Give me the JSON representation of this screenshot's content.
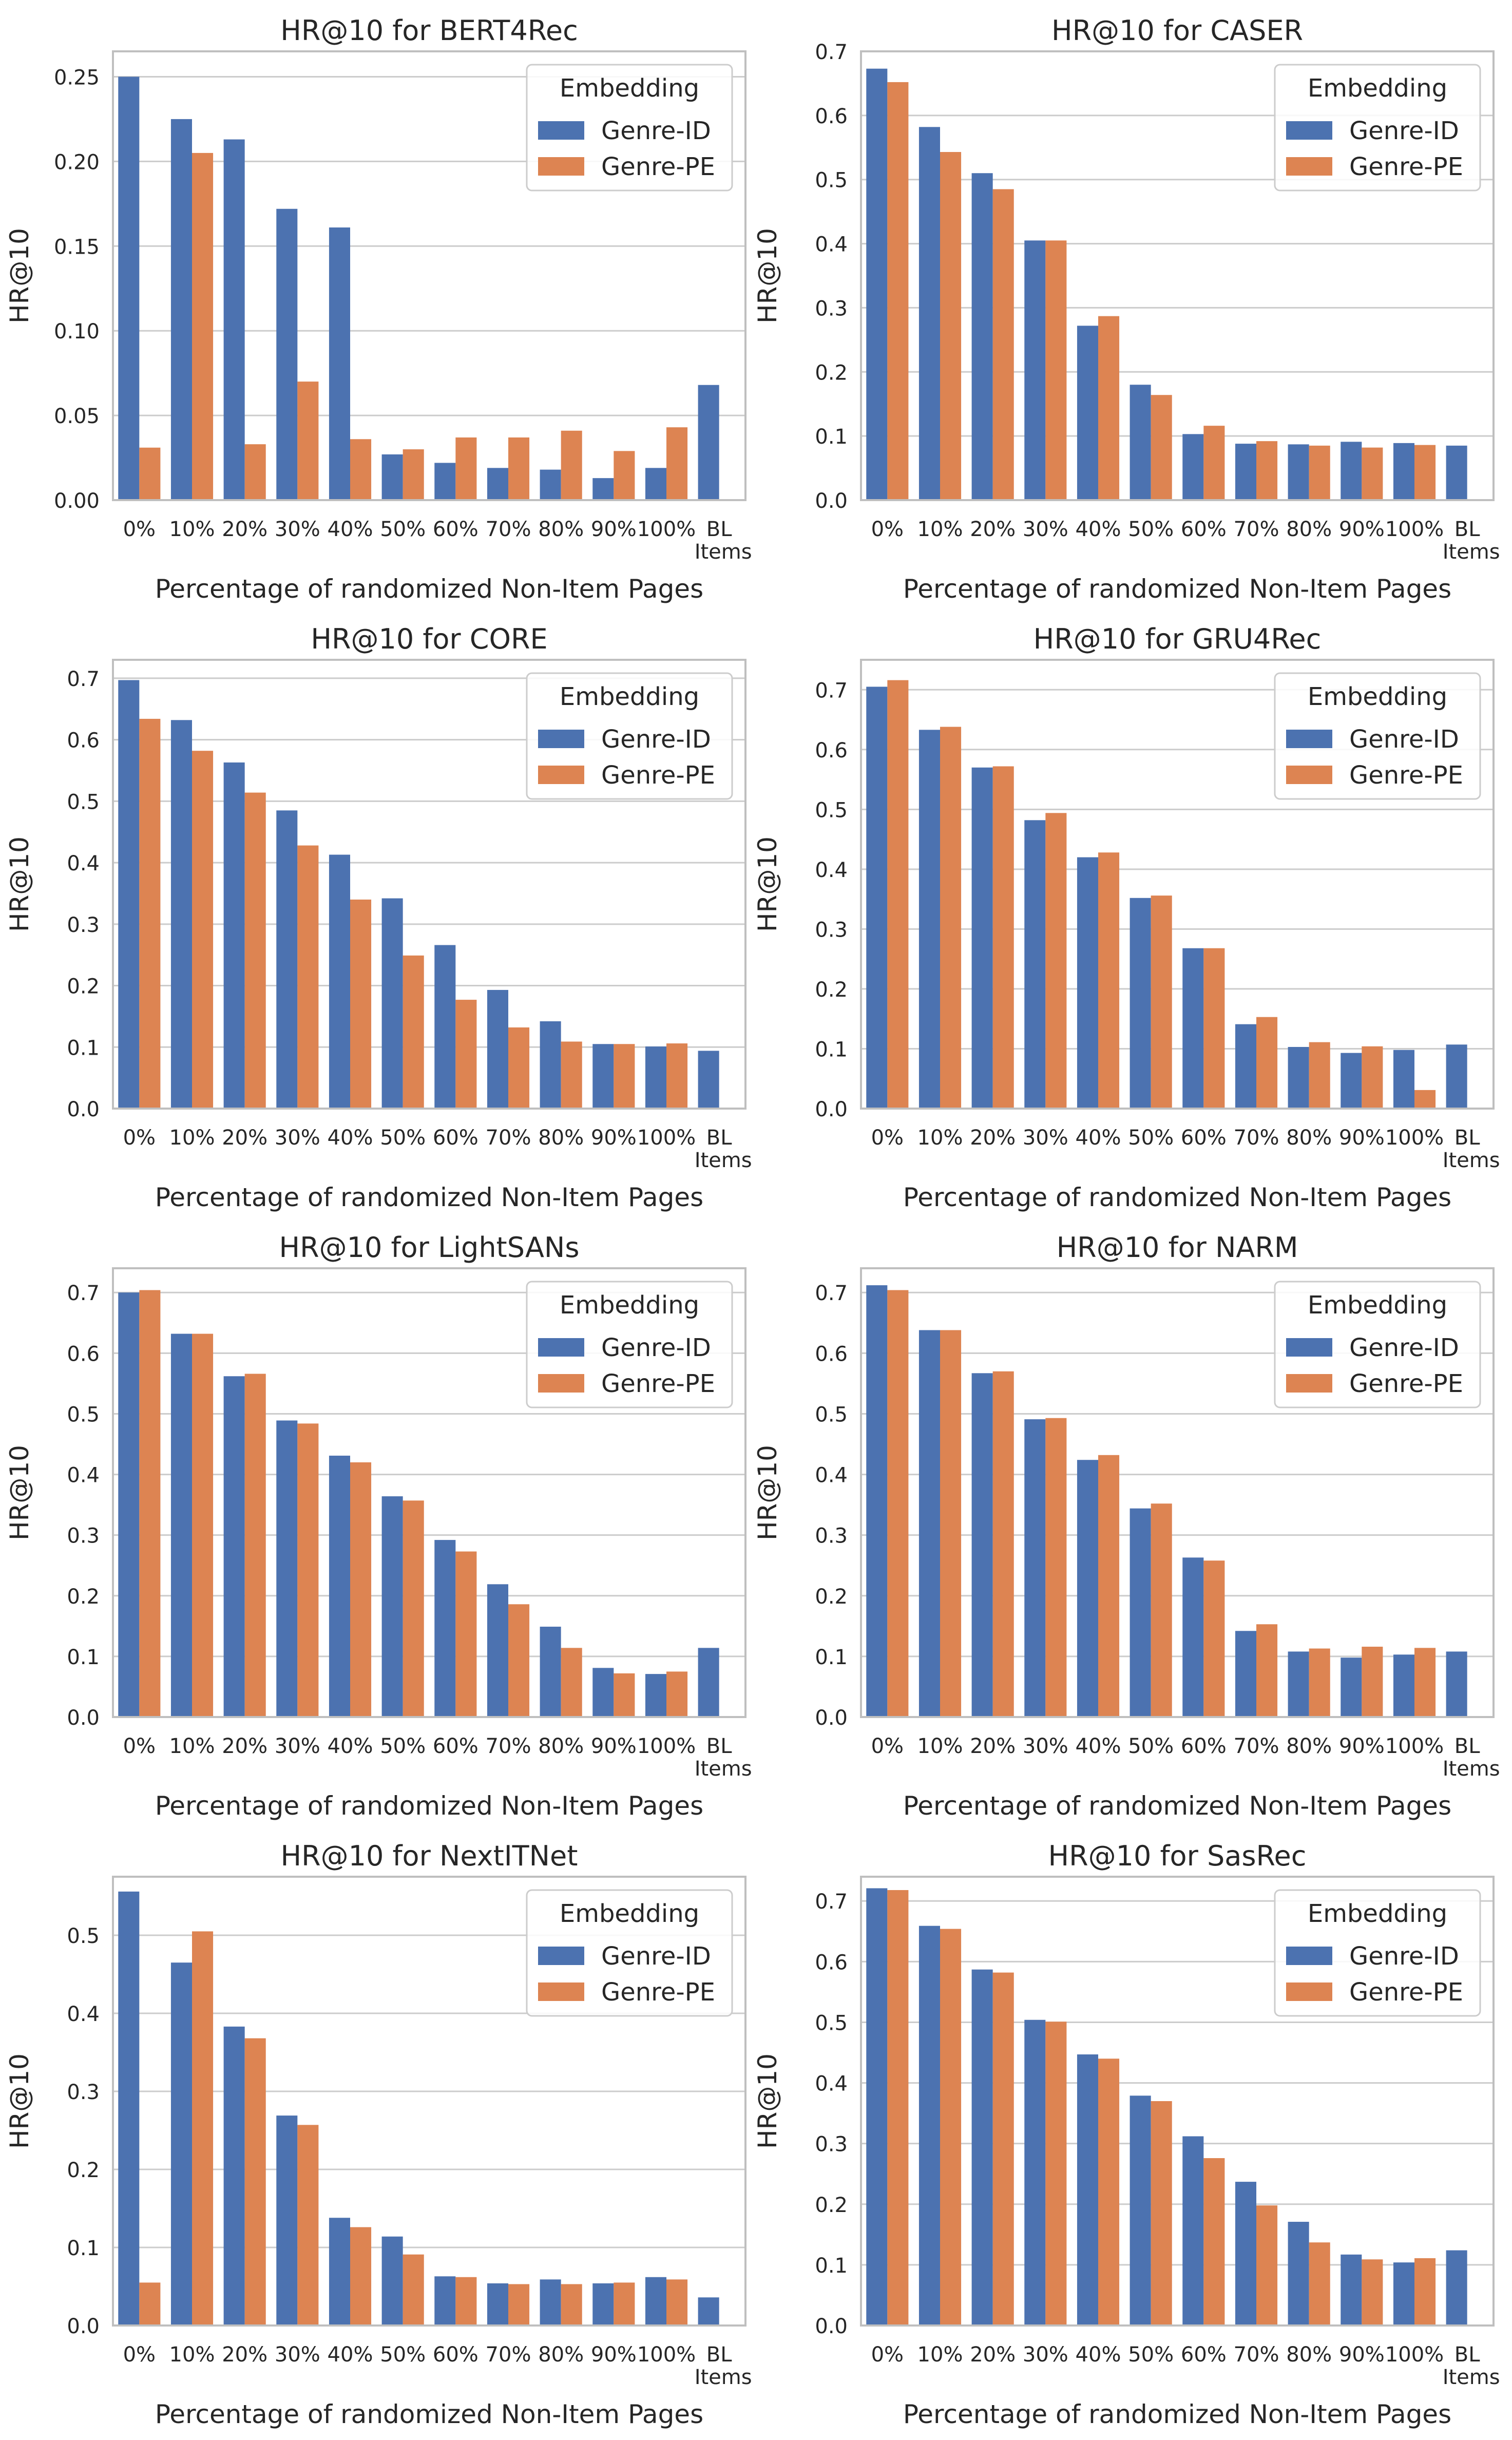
{
  "figure": {
    "legend_position": "top-right",
    "colors": {
      "genre_id": "#4c72b0",
      "genre_pe": "#dd8452",
      "grid": "#cccccc",
      "axes": "#bfbfbf",
      "text": "#262626"
    }
  },
  "chart_data": [
    {
      "type": "bar",
      "title": "HR@10 for BERT4Rec",
      "xlabel": "Percentage of randomized Non-Item Pages",
      "ylabel": "HR@10",
      "ylim": [
        0,
        0.265
      ],
      "yticks": [
        "0.00",
        "0.05",
        "0.10",
        "0.15",
        "0.20",
        "0.25"
      ],
      "categories": [
        "0%",
        "10%",
        "20%",
        "30%",
        "40%",
        "50%",
        "60%",
        "70%",
        "80%",
        "90%",
        "100%",
        "BL Items"
      ],
      "legend_title": "Embedding",
      "series": [
        {
          "name": "Genre-ID",
          "values": [
            0.25,
            0.225,
            0.213,
            0.172,
            0.161,
            0.027,
            0.022,
            0.019,
            0.018,
            0.013,
            0.019,
            0.068
          ]
        },
        {
          "name": "Genre-PE",
          "values": [
            0.031,
            0.205,
            0.033,
            0.07,
            0.036,
            0.03,
            0.037,
            0.037,
            0.041,
            0.029,
            0.043,
            null
          ]
        }
      ]
    },
    {
      "type": "bar",
      "title": "HR@10 for CASER",
      "xlabel": "Percentage of randomized Non-Item Pages",
      "ylabel": "HR@10",
      "ylim": [
        0,
        0.7
      ],
      "yticks": [
        "0.0",
        "0.1",
        "0.2",
        "0.3",
        "0.4",
        "0.5",
        "0.6",
        "0.7"
      ],
      "categories": [
        "0%",
        "10%",
        "20%",
        "30%",
        "40%",
        "50%",
        "60%",
        "70%",
        "80%",
        "90%",
        "100%",
        "BL Items"
      ],
      "legend_title": "Embedding",
      "series": [
        {
          "name": "Genre-ID",
          "values": [
            0.673,
            0.582,
            0.51,
            0.405,
            0.272,
            0.18,
            0.103,
            0.088,
            0.087,
            0.091,
            0.089,
            0.085
          ]
        },
        {
          "name": "Genre-PE",
          "values": [
            0.652,
            0.543,
            0.485,
            0.405,
            0.287,
            0.164,
            0.116,
            0.092,
            0.085,
            0.082,
            0.086,
            null
          ]
        }
      ]
    },
    {
      "type": "bar",
      "title": "HR@10 for CORE",
      "xlabel": "Percentage of randomized Non-Item Pages",
      "ylabel": "HR@10",
      "ylim": [
        0,
        0.73
      ],
      "yticks": [
        "0.0",
        "0.1",
        "0.2",
        "0.3",
        "0.4",
        "0.5",
        "0.6",
        "0.7"
      ],
      "categories": [
        "0%",
        "10%",
        "20%",
        "30%",
        "40%",
        "50%",
        "60%",
        "70%",
        "80%",
        "90%",
        "100%",
        "BL Items"
      ],
      "legend_title": "Embedding",
      "series": [
        {
          "name": "Genre-ID",
          "values": [
            0.697,
            0.632,
            0.563,
            0.485,
            0.413,
            0.342,
            0.266,
            0.193,
            0.142,
            0.105,
            0.101,
            0.094
          ]
        },
        {
          "name": "Genre-PE",
          "values": [
            0.634,
            0.582,
            0.514,
            0.428,
            0.34,
            0.249,
            0.177,
            0.132,
            0.109,
            0.105,
            0.106,
            null
          ]
        }
      ]
    },
    {
      "type": "bar",
      "title": "HR@10 for GRU4Rec",
      "xlabel": "Percentage of randomized Non-Item Pages",
      "ylabel": "HR@10",
      "ylim": [
        0,
        0.75
      ],
      "yticks": [
        "0.0",
        "0.1",
        "0.2",
        "0.3",
        "0.4",
        "0.5",
        "0.6",
        "0.7"
      ],
      "categories": [
        "0%",
        "10%",
        "20%",
        "30%",
        "40%",
        "50%",
        "60%",
        "70%",
        "80%",
        "90%",
        "100%",
        "BL Items"
      ],
      "legend_title": "Embedding",
      "series": [
        {
          "name": "Genre-ID",
          "values": [
            0.705,
            0.633,
            0.57,
            0.482,
            0.42,
            0.352,
            0.268,
            0.141,
            0.103,
            0.093,
            0.098,
            0.107
          ]
        },
        {
          "name": "Genre-PE",
          "values": [
            0.716,
            0.638,
            0.572,
            0.494,
            0.428,
            0.356,
            0.268,
            0.153,
            0.111,
            0.104,
            0.031,
            null
          ]
        }
      ]
    },
    {
      "type": "bar",
      "title": "HR@10 for LightSANs",
      "xlabel": "Percentage of randomized Non-Item Pages",
      "ylabel": "HR@10",
      "ylim": [
        0,
        0.74
      ],
      "yticks": [
        "0.0",
        "0.1",
        "0.2",
        "0.3",
        "0.4",
        "0.5",
        "0.6",
        "0.7"
      ],
      "categories": [
        "0%",
        "10%",
        "20%",
        "30%",
        "40%",
        "50%",
        "60%",
        "70%",
        "80%",
        "90%",
        "100%",
        "BL Items"
      ],
      "legend_title": "Embedding",
      "series": [
        {
          "name": "Genre-ID",
          "values": [
            0.7,
            0.632,
            0.562,
            0.489,
            0.431,
            0.364,
            0.292,
            0.219,
            0.149,
            0.081,
            0.071,
            0.114
          ]
        },
        {
          "name": "Genre-PE",
          "values": [
            0.704,
            0.632,
            0.566,
            0.484,
            0.42,
            0.357,
            0.273,
            0.186,
            0.114,
            0.072,
            0.075,
            null
          ]
        }
      ]
    },
    {
      "type": "bar",
      "title": "HR@10 for NARM",
      "xlabel": "Percentage of randomized Non-Item Pages",
      "ylabel": "HR@10",
      "ylim": [
        0,
        0.74
      ],
      "yticks": [
        "0.0",
        "0.1",
        "0.2",
        "0.3",
        "0.4",
        "0.5",
        "0.6",
        "0.7"
      ],
      "categories": [
        "0%",
        "10%",
        "20%",
        "30%",
        "40%",
        "50%",
        "60%",
        "70%",
        "80%",
        "90%",
        "100%",
        "BL Items"
      ],
      "legend_title": "Embedding",
      "series": [
        {
          "name": "Genre-ID",
          "values": [
            0.712,
            0.638,
            0.567,
            0.491,
            0.424,
            0.344,
            0.263,
            0.142,
            0.108,
            0.098,
            0.103,
            0.108
          ]
        },
        {
          "name": "Genre-PE",
          "values": [
            0.704,
            0.638,
            0.57,
            0.493,
            0.432,
            0.352,
            0.258,
            0.153,
            0.113,
            0.116,
            0.114,
            null
          ]
        }
      ]
    },
    {
      "type": "bar",
      "title": "HR@10 for NextITNet",
      "xlabel": "Percentage of randomized Non-Item Pages",
      "ylabel": "HR@10",
      "ylim": [
        0,
        0.575
      ],
      "yticks": [
        "0.0",
        "0.1",
        "0.2",
        "0.3",
        "0.4",
        "0.5"
      ],
      "categories": [
        "0%",
        "10%",
        "20%",
        "30%",
        "40%",
        "50%",
        "60%",
        "70%",
        "80%",
        "90%",
        "100%",
        "BL Items"
      ],
      "legend_title": "Embedding",
      "series": [
        {
          "name": "Genre-ID",
          "values": [
            0.556,
            0.465,
            0.383,
            0.269,
            0.138,
            0.114,
            0.063,
            0.054,
            0.059,
            0.054,
            0.062,
            0.036
          ]
        },
        {
          "name": "Genre-PE",
          "values": [
            0.055,
            0.505,
            0.368,
            0.257,
            0.126,
            0.091,
            0.062,
            0.053,
            0.053,
            0.055,
            0.059,
            null
          ]
        }
      ]
    },
    {
      "type": "bar",
      "title": "HR@10 for SasRec",
      "xlabel": "Percentage of randomized Non-Item Pages",
      "ylabel": "HR@10",
      "ylim": [
        0,
        0.74
      ],
      "yticks": [
        "0.0",
        "0.1",
        "0.2",
        "0.3",
        "0.4",
        "0.5",
        "0.6",
        "0.7"
      ],
      "categories": [
        "0%",
        "10%",
        "20%",
        "30%",
        "40%",
        "50%",
        "60%",
        "70%",
        "80%",
        "90%",
        "100%",
        "BL Items"
      ],
      "legend_title": "Embedding",
      "series": [
        {
          "name": "Genre-ID",
          "values": [
            0.721,
            0.659,
            0.587,
            0.504,
            0.447,
            0.379,
            0.312,
            0.237,
            0.171,
            0.117,
            0.104,
            0.124
          ]
        },
        {
          "name": "Genre-PE",
          "values": [
            0.718,
            0.654,
            0.582,
            0.501,
            0.44,
            0.37,
            0.276,
            0.198,
            0.137,
            0.109,
            0.111,
            null
          ]
        }
      ]
    }
  ]
}
